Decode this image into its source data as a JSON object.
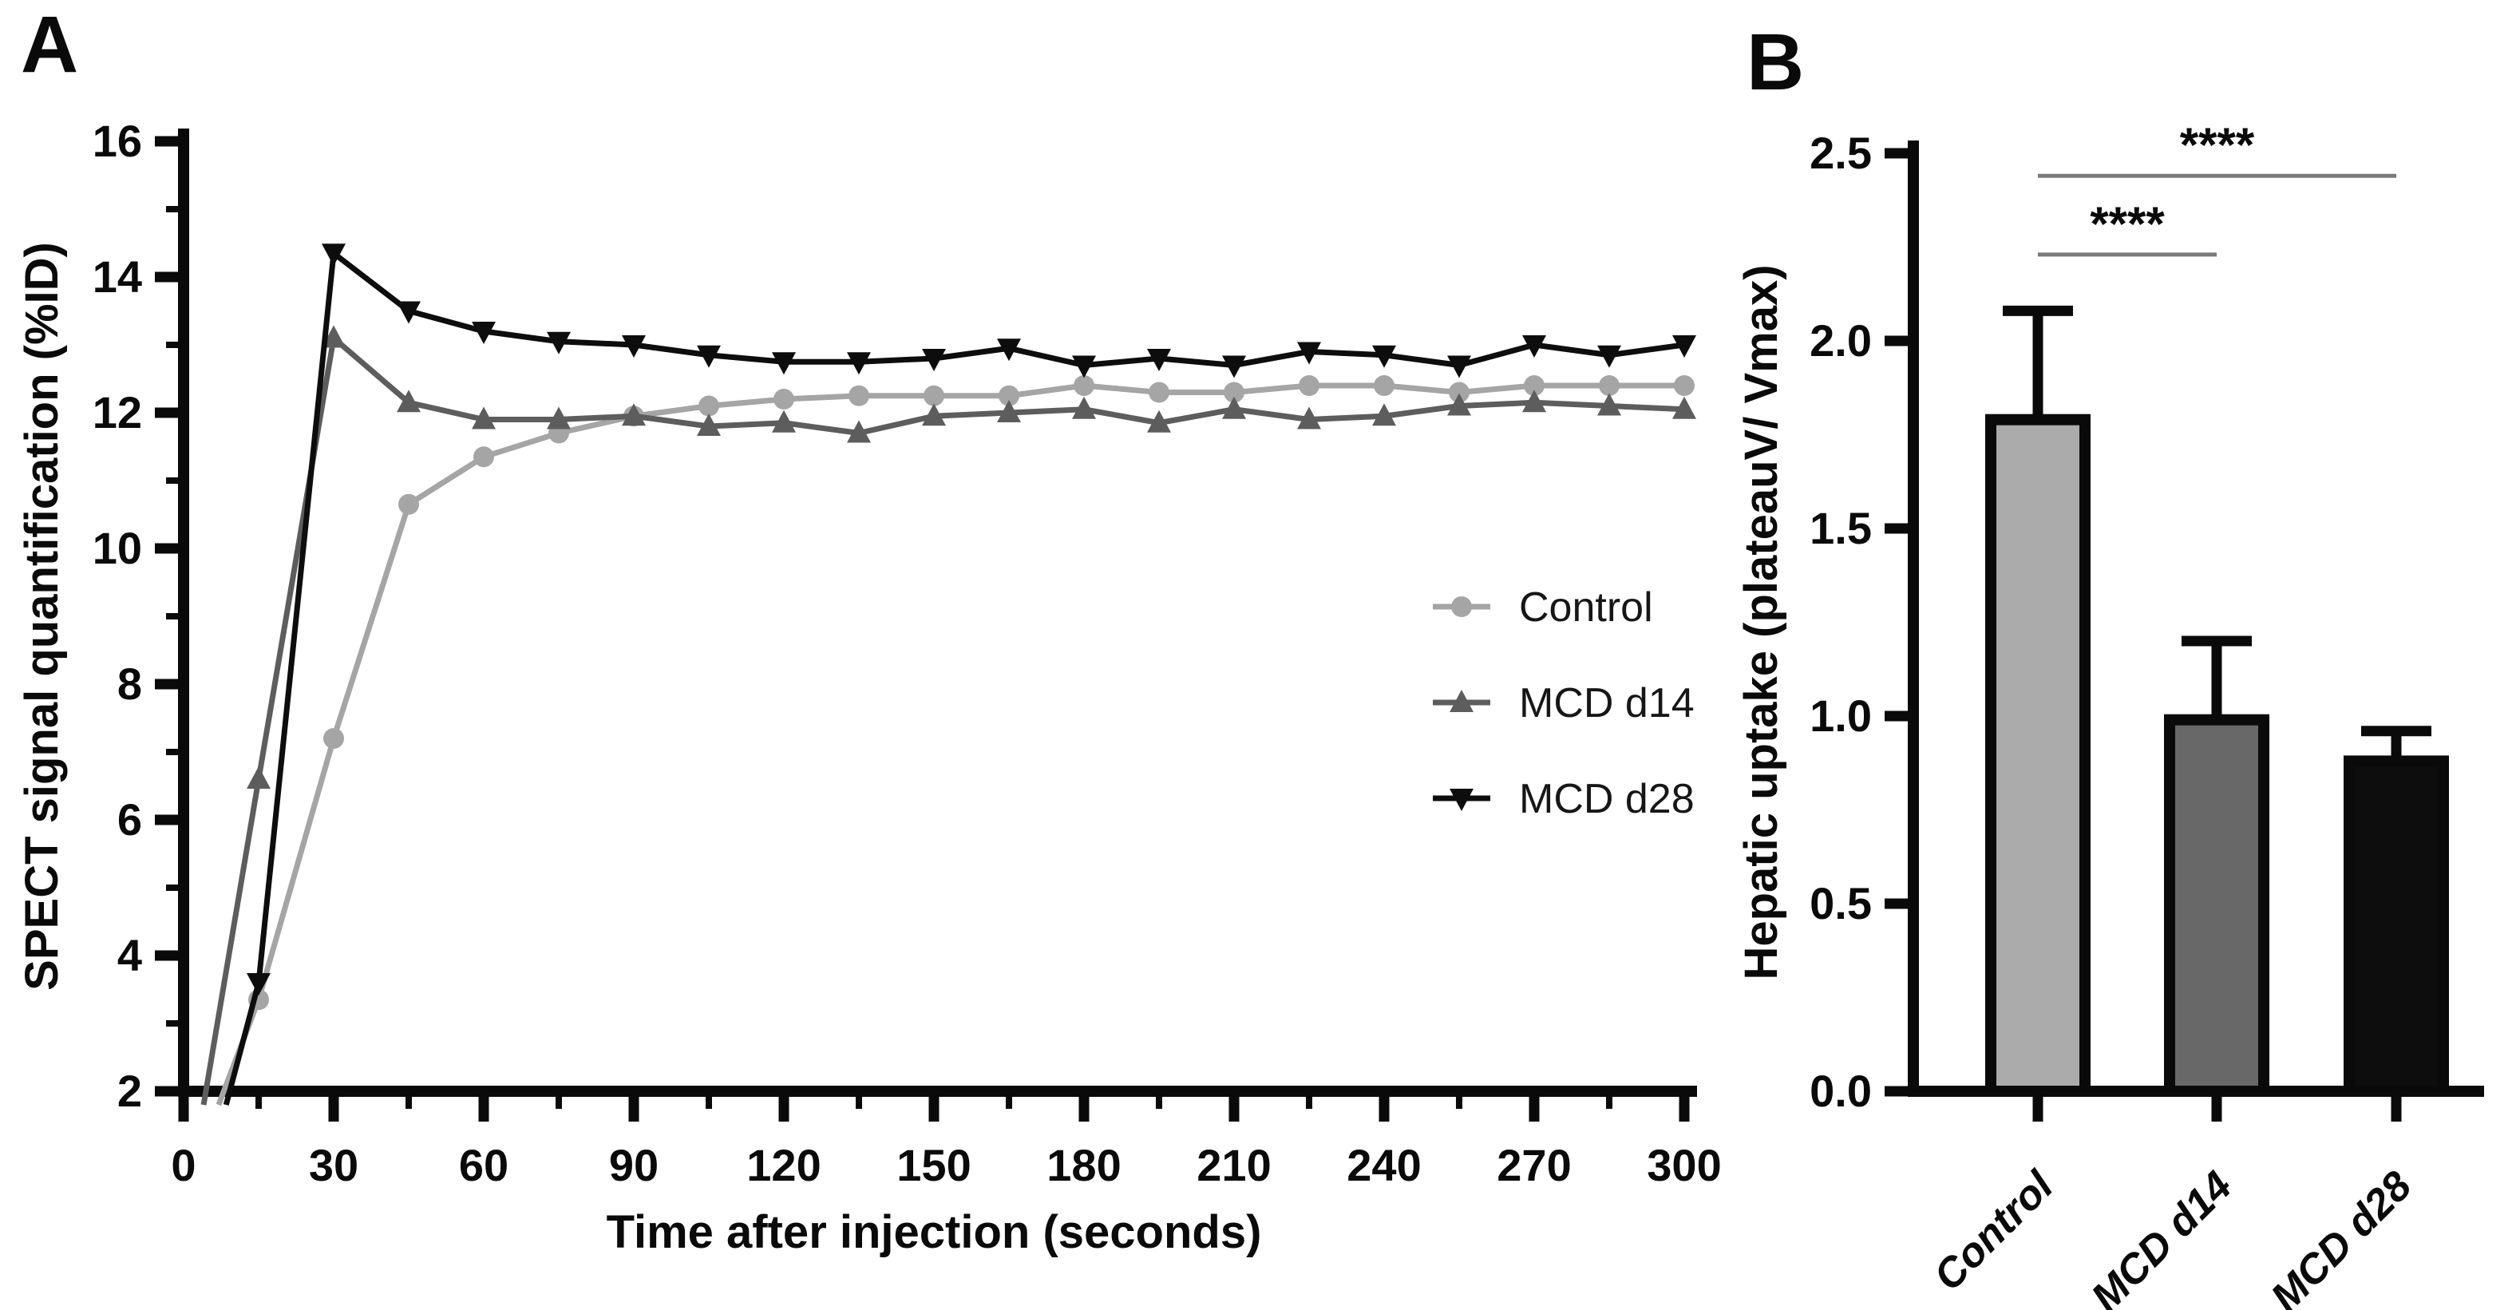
{
  "figure": {
    "panel_a_label": "A",
    "panel_b_label": "B"
  },
  "colors": {
    "control": "#a5a5a5",
    "mcd_d14": "#5d5d5d",
    "mcd_d28": "#0d0d0d",
    "axis": "#0a0a0a",
    "significance_line": "#7a7a7a",
    "bar_control_fill": "#ababab",
    "bar_mcd_d14_fill": "#686868",
    "bar_mcd_d28_fill": "#0d0d0d"
  },
  "chart_data": [
    {
      "id": "spect-line-chart",
      "type": "line",
      "title": "",
      "xlabel": "Time after injection (seconds)",
      "ylabel": "SPECT signal quantification (%ID)",
      "xlim": [
        0,
        300
      ],
      "ylim": [
        2,
        16
      ],
      "x_major_ticks": [
        0,
        30,
        60,
        90,
        120,
        150,
        180,
        210,
        240,
        270,
        300
      ],
      "x_minor_ticks": [
        15,
        45,
        75,
        105,
        135,
        165,
        195,
        225,
        255,
        285
      ],
      "y_major_ticks": [
        2,
        4,
        6,
        8,
        10,
        12,
        14,
        16
      ],
      "y_minor_ticks": [
        3,
        5,
        7,
        9,
        11,
        13,
        15
      ],
      "grid": false,
      "legend_position": "right-middle",
      "x": [
        15,
        30,
        45,
        60,
        75,
        90,
        105,
        120,
        135,
        150,
        165,
        180,
        195,
        210,
        225,
        240,
        255,
        270,
        285,
        300
      ],
      "series": [
        {
          "name": "Control",
          "marker": "circle",
          "color": "#a5a5a5",
          "origin": [
            7,
            1.8
          ],
          "values": [
            3.35,
            7.2,
            10.65,
            11.35,
            11.7,
            11.95,
            12.1,
            12.2,
            12.25,
            12.25,
            12.25,
            12.4,
            12.3,
            12.3,
            12.4,
            12.4,
            12.3,
            12.4,
            12.4,
            12.4
          ]
        },
        {
          "name": "MCD d14",
          "marker": "triangle-up",
          "color": "#5d5d5d",
          "origin": [
            4,
            1.8
          ],
          "values": [
            6.6,
            13.1,
            12.15,
            11.9,
            11.9,
            11.95,
            11.8,
            11.85,
            11.7,
            11.95,
            12.0,
            12.05,
            11.85,
            12.05,
            11.9,
            11.95,
            12.1,
            12.15,
            12.1,
            12.05
          ]
        },
        {
          "name": "MCD d28",
          "marker": "triangle-down",
          "color": "#0d0d0d",
          "origin": [
            8.5,
            1.8
          ],
          "values": [
            3.6,
            14.35,
            13.5,
            13.2,
            13.05,
            13.0,
            12.85,
            12.75,
            12.75,
            12.8,
            12.95,
            12.7,
            12.8,
            12.7,
            12.9,
            12.85,
            12.7,
            13.0,
            12.85,
            13.0
          ]
        }
      ]
    },
    {
      "id": "hepatic-bar-chart",
      "type": "bar",
      "title": "",
      "xlabel": "",
      "ylabel": "Hepatic uptake (plateauV/ Vmax)",
      "ylim": [
        0,
        2.5
      ],
      "y_major_ticks": [
        0.0,
        0.5,
        1.0,
        1.5,
        2.0,
        2.5
      ],
      "y_tick_decimals": 1,
      "grid": false,
      "categories": [
        "Control",
        "MCD d14",
        "MCD d28"
      ],
      "values": [
        1.79,
        0.99,
        0.88
      ],
      "errors_plus": [
        0.29,
        0.21,
        0.08
      ],
      "bar_fill_colors": [
        "#ababab",
        "#686868",
        "#0d0d0d"
      ],
      "bar_edge_color": "#0a0a0a",
      "significance": [
        {
          "from": 0,
          "to": 1,
          "label": "****",
          "y": 2.23
        },
        {
          "from": 0,
          "to": 2,
          "label": "****",
          "y": 2.44
        }
      ]
    }
  ]
}
